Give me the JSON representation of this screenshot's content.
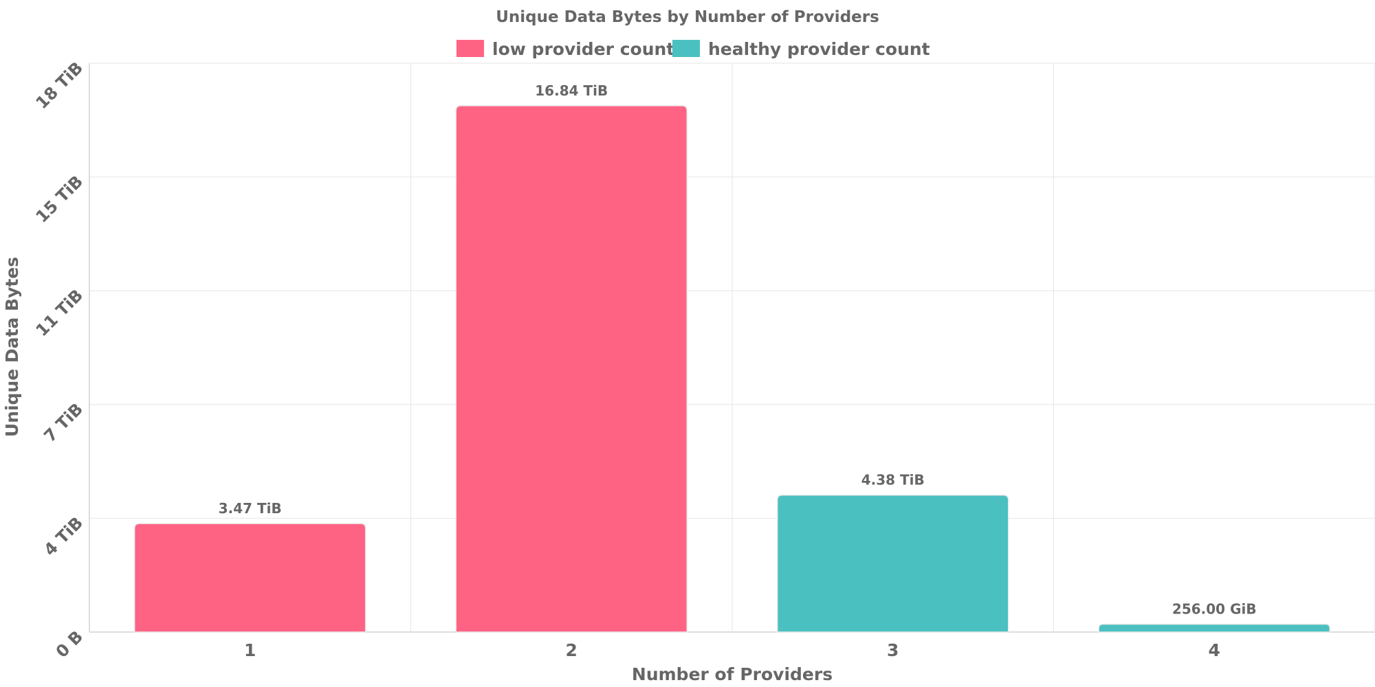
{
  "chart_data": {
    "type": "bar",
    "title": "Unique Data Bytes by Number of Providers",
    "xlabel": "Number of Providers",
    "ylabel": "Unique Data Bytes",
    "categories": [
      "1",
      "2",
      "3",
      "4"
    ],
    "values_tib": [
      3.47,
      16.84,
      4.38,
      0.25
    ],
    "data_labels": [
      "3.47 TiB",
      "16.84 TiB",
      "4.38 TiB",
      "256.00 GiB"
    ],
    "bar_series": [
      "low provider count",
      "low provider count",
      "healthy provider count",
      "healthy provider count"
    ],
    "y_ticks": [
      {
        "value_tib": 0,
        "label": "0 B"
      },
      {
        "value_tib": 3.64,
        "label": "4 TiB"
      },
      {
        "value_tib": 7.28,
        "label": "7 TiB"
      },
      {
        "value_tib": 10.92,
        "label": "11 TiB"
      },
      {
        "value_tib": 14.56,
        "label": "15 TiB"
      },
      {
        "value_tib": 18.2,
        "label": "18 TiB"
      }
    ],
    "ylim_tib": [
      0,
      18.2
    ],
    "grid": true,
    "legend_position": "top-center",
    "series": [
      {
        "name": "low provider count",
        "color": "#ff6384"
      },
      {
        "name": "healthy provider count",
        "color": "#4bc0c0"
      }
    ]
  }
}
